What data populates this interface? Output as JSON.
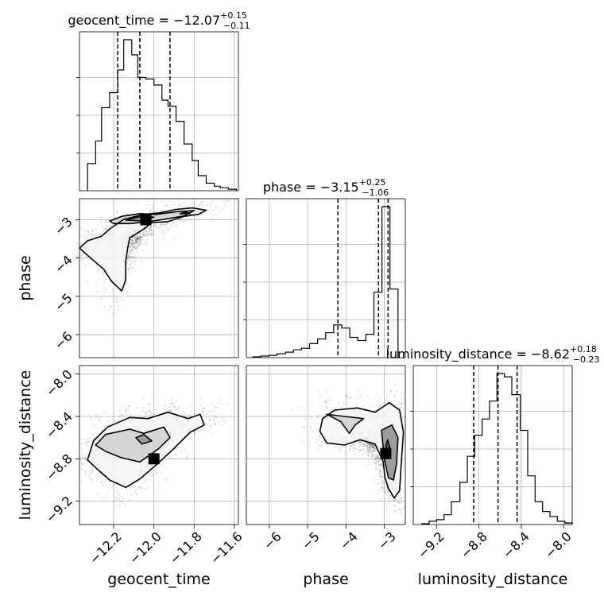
{
  "chart_data": {
    "type": "corner",
    "parameters": [
      "geocent_time",
      "phase",
      "luminosity_distance"
    ],
    "grid": true,
    "quantile_lines": "dashed",
    "diagonal": [
      {
        "param": "geocent_time",
        "title_prefix": "geocent_time = ",
        "median": "−12.07",
        "plus": "+0.15",
        "minus": "−0.11",
        "range": [
          -12.37,
          -11.58
        ],
        "quantiles": [
          -12.18,
          -12.07,
          -11.92
        ],
        "bin_edges": [
          -12.33,
          -12.29,
          -12.26,
          -12.22,
          -12.18,
          -12.15,
          -12.11,
          -12.08,
          -12.04,
          -12.0,
          -11.96,
          -11.93,
          -11.89,
          -11.85,
          -11.81,
          -11.78,
          -11.74,
          -11.7,
          -11.67,
          -11.63,
          -11.59
        ],
        "counts": [
          0.18,
          0.33,
          0.55,
          0.65,
          0.8,
          1.0,
          0.9,
          0.75,
          0.74,
          0.7,
          0.6,
          0.56,
          0.46,
          0.31,
          0.2,
          0.1,
          0.05,
          0.03,
          0.02,
          0.01
        ]
      },
      {
        "param": "phase",
        "title_prefix": "phase = ",
        "median": "−3.15",
        "plus": "+0.25",
        "minus": "−1.06",
        "range": [
          -6.6,
          -2.45
        ],
        "quantiles": [
          -4.21,
          -3.15,
          -2.9
        ],
        "bin_edges": [
          -6.43,
          -6.22,
          -6.01,
          -5.8,
          -5.58,
          -5.37,
          -5.16,
          -4.95,
          -4.74,
          -4.53,
          -4.32,
          -4.11,
          -3.9,
          -3.69,
          -3.48,
          -3.27,
          -3.06,
          -2.85,
          -2.64
        ],
        "counts": [
          0.005,
          0.01,
          0.015,
          0.025,
          0.035,
          0.05,
          0.06,
          0.09,
          0.12,
          0.16,
          0.21,
          0.19,
          0.13,
          0.11,
          0.15,
          0.42,
          0.97,
          0.44
        ]
      },
      {
        "param": "luminosity_distance",
        "title_prefix": "luminosity_distance = ",
        "median": "−8.62",
        "plus": "+0.18",
        "minus": "−0.23",
        "range": [
          -9.42,
          -7.92
        ],
        "quantiles": [
          -8.85,
          -8.62,
          -8.44
        ],
        "bin_edges": [
          -9.34,
          -9.27,
          -9.2,
          -9.13,
          -9.06,
          -8.98,
          -8.91,
          -8.84,
          -8.77,
          -8.7,
          -8.63,
          -8.56,
          -8.49,
          -8.41,
          -8.34,
          -8.27,
          -8.2,
          -8.13,
          -8.06,
          -7.99,
          -7.92
        ],
        "counts": [
          0.005,
          0.02,
          0.03,
          0.06,
          0.14,
          0.26,
          0.42,
          0.55,
          0.65,
          0.76,
          0.93,
          0.91,
          0.8,
          0.58,
          0.3,
          0.14,
          0.08,
          0.05,
          0.02,
          0.01
        ]
      }
    ],
    "pairs": [
      {
        "x": "geocent_time",
        "y": "phase",
        "xlim": [
          -12.37,
          -11.58
        ],
        "ylim": [
          -6.6,
          -2.45
        ],
        "contours": [
          [
            [
              -12.37,
              -3.74
            ],
            [
              -12.33,
              -3.55
            ],
            [
              -12.26,
              -3.43
            ],
            [
              -12.22,
              -3.24
            ],
            [
              -12.15,
              -2.99
            ],
            [
              -12.05,
              -2.86
            ],
            [
              -11.97,
              -2.82
            ],
            [
              -11.89,
              -2.73
            ],
            [
              -11.81,
              -2.69
            ],
            [
              -11.74,
              -2.75
            ],
            [
              -11.78,
              -2.86
            ],
            [
              -11.85,
              -2.91
            ],
            [
              -11.93,
              -3.05
            ],
            [
              -12.01,
              -3.07
            ],
            [
              -12.05,
              -3.24
            ],
            [
              -12.12,
              -3.47
            ],
            [
              -12.13,
              -3.72
            ],
            [
              -12.14,
              -4.08
            ],
            [
              -12.14,
              -4.57
            ],
            [
              -12.16,
              -4.86
            ],
            [
              -12.21,
              -4.61
            ],
            [
              -12.25,
              -4.29
            ],
            [
              -12.31,
              -4.02
            ],
            [
              -12.37,
              -3.74
            ]
          ],
          [
            [
              -12.22,
              -3.03
            ],
            [
              -12.16,
              -2.91
            ],
            [
              -12.07,
              -2.84
            ],
            [
              -11.99,
              -2.86
            ],
            [
              -11.89,
              -2.79
            ],
            [
              -11.8,
              -2.76
            ],
            [
              -11.85,
              -2.9
            ],
            [
              -11.95,
              -2.99
            ],
            [
              -12.03,
              -3.05
            ],
            [
              -12.12,
              -3.1
            ],
            [
              -12.2,
              -3.1
            ],
            [
              -12.22,
              -3.03
            ]
          ],
          [
            [
              -12.14,
              -3.01
            ],
            [
              -12.08,
              -2.93
            ],
            [
              -12.0,
              -2.93
            ],
            [
              -12.05,
              -3.03
            ],
            [
              -12.14,
              -3.01
            ]
          ],
          [
            [
              -11.87,
              -2.84
            ],
            [
              -11.84,
              -2.8
            ],
            [
              -11.82,
              -2.84
            ],
            [
              -11.87,
              -2.84
            ]
          ]
        ],
        "density_peak": [
          -12.04,
          -3.0
        ]
      },
      {
        "x": "geocent_time",
        "y": "luminosity_distance",
        "xlim": [
          -12.37,
          -11.58
        ],
        "ylim": [
          -9.42,
          -7.92
        ],
        "contours": [
          [
            [
              -12.33,
              -8.81
            ],
            [
              -12.3,
              -8.63
            ],
            [
              -12.23,
              -8.5
            ],
            [
              -12.12,
              -8.41
            ],
            [
              -12.03,
              -8.42
            ],
            [
              -11.93,
              -8.36
            ],
            [
              -11.83,
              -8.42
            ],
            [
              -11.77,
              -8.38
            ],
            [
              -11.75,
              -8.48
            ],
            [
              -11.82,
              -8.55
            ],
            [
              -11.91,
              -8.72
            ],
            [
              -11.99,
              -8.86
            ],
            [
              -12.07,
              -8.99
            ],
            [
              -12.14,
              -9.07
            ],
            [
              -12.22,
              -9.0
            ],
            [
              -12.28,
              -8.9
            ],
            [
              -12.33,
              -8.81
            ]
          ],
          [
            [
              -12.29,
              -8.67
            ],
            [
              -12.24,
              -8.57
            ],
            [
              -12.12,
              -8.52
            ],
            [
              -12.05,
              -8.56
            ],
            [
              -11.95,
              -8.5
            ],
            [
              -11.92,
              -8.6
            ],
            [
              -11.98,
              -8.71
            ],
            [
              -12.07,
              -8.83
            ],
            [
              -12.16,
              -8.79
            ],
            [
              -12.24,
              -8.73
            ],
            [
              -12.29,
              -8.67
            ]
          ],
          [
            [
              -12.09,
              -8.6
            ],
            [
              -12.06,
              -8.66
            ],
            [
              -12.01,
              -8.63
            ],
            [
              -12.05,
              -8.57
            ],
            [
              -12.09,
              -8.6
            ]
          ]
        ],
        "density_peak": [
          -12.0,
          -8.8
        ]
      },
      {
        "x": "phase",
        "y": "luminosity_distance",
        "xlim": [
          -6.6,
          -2.45
        ],
        "ylim": [
          -9.42,
          -7.92
        ],
        "contours": [
          [
            [
              -3.03,
              -8.82
            ],
            [
              -3.24,
              -8.66
            ],
            [
              -3.63,
              -8.62
            ],
            [
              -4.04,
              -8.67
            ],
            [
              -4.5,
              -8.65
            ],
            [
              -4.68,
              -8.54
            ],
            [
              -4.61,
              -8.42
            ],
            [
              -4.29,
              -8.34
            ],
            [
              -3.7,
              -8.32
            ],
            [
              -3.24,
              -8.36
            ],
            [
              -2.87,
              -8.27
            ],
            [
              -2.6,
              -8.34
            ],
            [
              -2.5,
              -8.55
            ],
            [
              -2.55,
              -8.81
            ],
            [
              -2.6,
              -9.1
            ],
            [
              -2.74,
              -9.17
            ],
            [
              -2.89,
              -9.08
            ],
            [
              -2.98,
              -8.98
            ],
            [
              -3.03,
              -8.82
            ]
          ],
          [
            [
              -4.5,
              -8.38
            ],
            [
              -4.13,
              -8.45
            ],
            [
              -3.91,
              -8.56
            ],
            [
              -3.76,
              -8.48
            ],
            [
              -3.54,
              -8.42
            ],
            [
              -4.04,
              -8.4
            ],
            [
              -4.5,
              -8.38
            ]
          ],
          [
            [
              -3.07,
              -8.53
            ],
            [
              -2.8,
              -8.48
            ],
            [
              -2.64,
              -8.6
            ],
            [
              -2.68,
              -8.85
            ],
            [
              -2.76,
              -9.0
            ],
            [
              -2.89,
              -8.98
            ],
            [
              -3.0,
              -8.8
            ],
            [
              -3.07,
              -8.53
            ]
          ],
          [
            [
              -2.96,
              -8.68
            ],
            [
              -2.91,
              -8.62
            ],
            [
              -2.85,
              -8.7
            ],
            [
              -2.9,
              -8.77
            ],
            [
              -2.96,
              -8.68
            ]
          ]
        ],
        "density_peak": [
          -2.96,
          -8.75
        ]
      }
    ],
    "ticks": {
      "geocent_time": [
        "−12.2",
        "−12.0",
        "−11.8",
        "−11.6"
      ],
      "geocent_time_values": [
        -12.2,
        -12.0,
        -11.8,
        -11.6
      ],
      "phase": [
        "−6",
        "−5",
        "−4",
        "−3"
      ],
      "phase_values": [
        -6,
        -5,
        -4,
        -3
      ],
      "luminosity_distance": [
        "−9.2",
        "−8.8",
        "−8.4",
        "−8.0"
      ],
      "luminosity_distance_values": [
        -9.2,
        -8.8,
        -8.4,
        -8.0
      ]
    },
    "axis_labels": {
      "geocent_time": "geocent_time",
      "phase": "phase",
      "luminosity_distance": "luminosity_distance"
    }
  }
}
